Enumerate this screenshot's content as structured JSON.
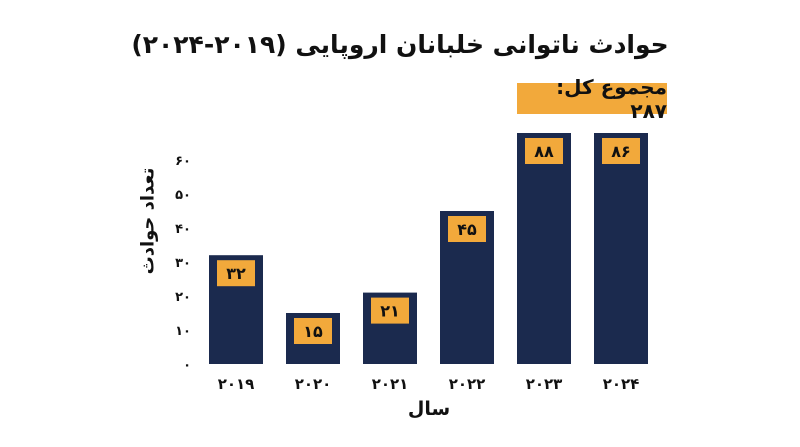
{
  "chart_data": {
    "type": "bar",
    "title": "حوادث ناتوانی خلبانان اروپایی (۲۰۱۹-۲۰۲۴)",
    "total_label": "مجموع کل: ۲۸۷",
    "xlabel": "سال",
    "ylabel": "تعداد حوادث",
    "categories": [
      "۲۰۱۹",
      "۲۰۲۰",
      "۲۰۲۱",
      "۲۰۲۲",
      "۲۰۲۳",
      "۲۰۲۴"
    ],
    "values": [
      32,
      15,
      21,
      45,
      88,
      86
    ],
    "value_labels": [
      "۳۲",
      "۱۵",
      "۲۱",
      "۴۵",
      "۸۸",
      "۸۶"
    ],
    "yticks": [
      0,
      10,
      20,
      30,
      40,
      50,
      60
    ],
    "ytick_labels": [
      "۰",
      "۱۰",
      "۲۰",
      "۳۰",
      "۴۰",
      "۵۰",
      "۶۰"
    ],
    "ylim": [
      0,
      60
    ],
    "clipped_at_top": true,
    "grid": false,
    "colors": {
      "bar": "#1b2a4e",
      "label_bg": "#f2a93b",
      "text": "#111111"
    }
  }
}
